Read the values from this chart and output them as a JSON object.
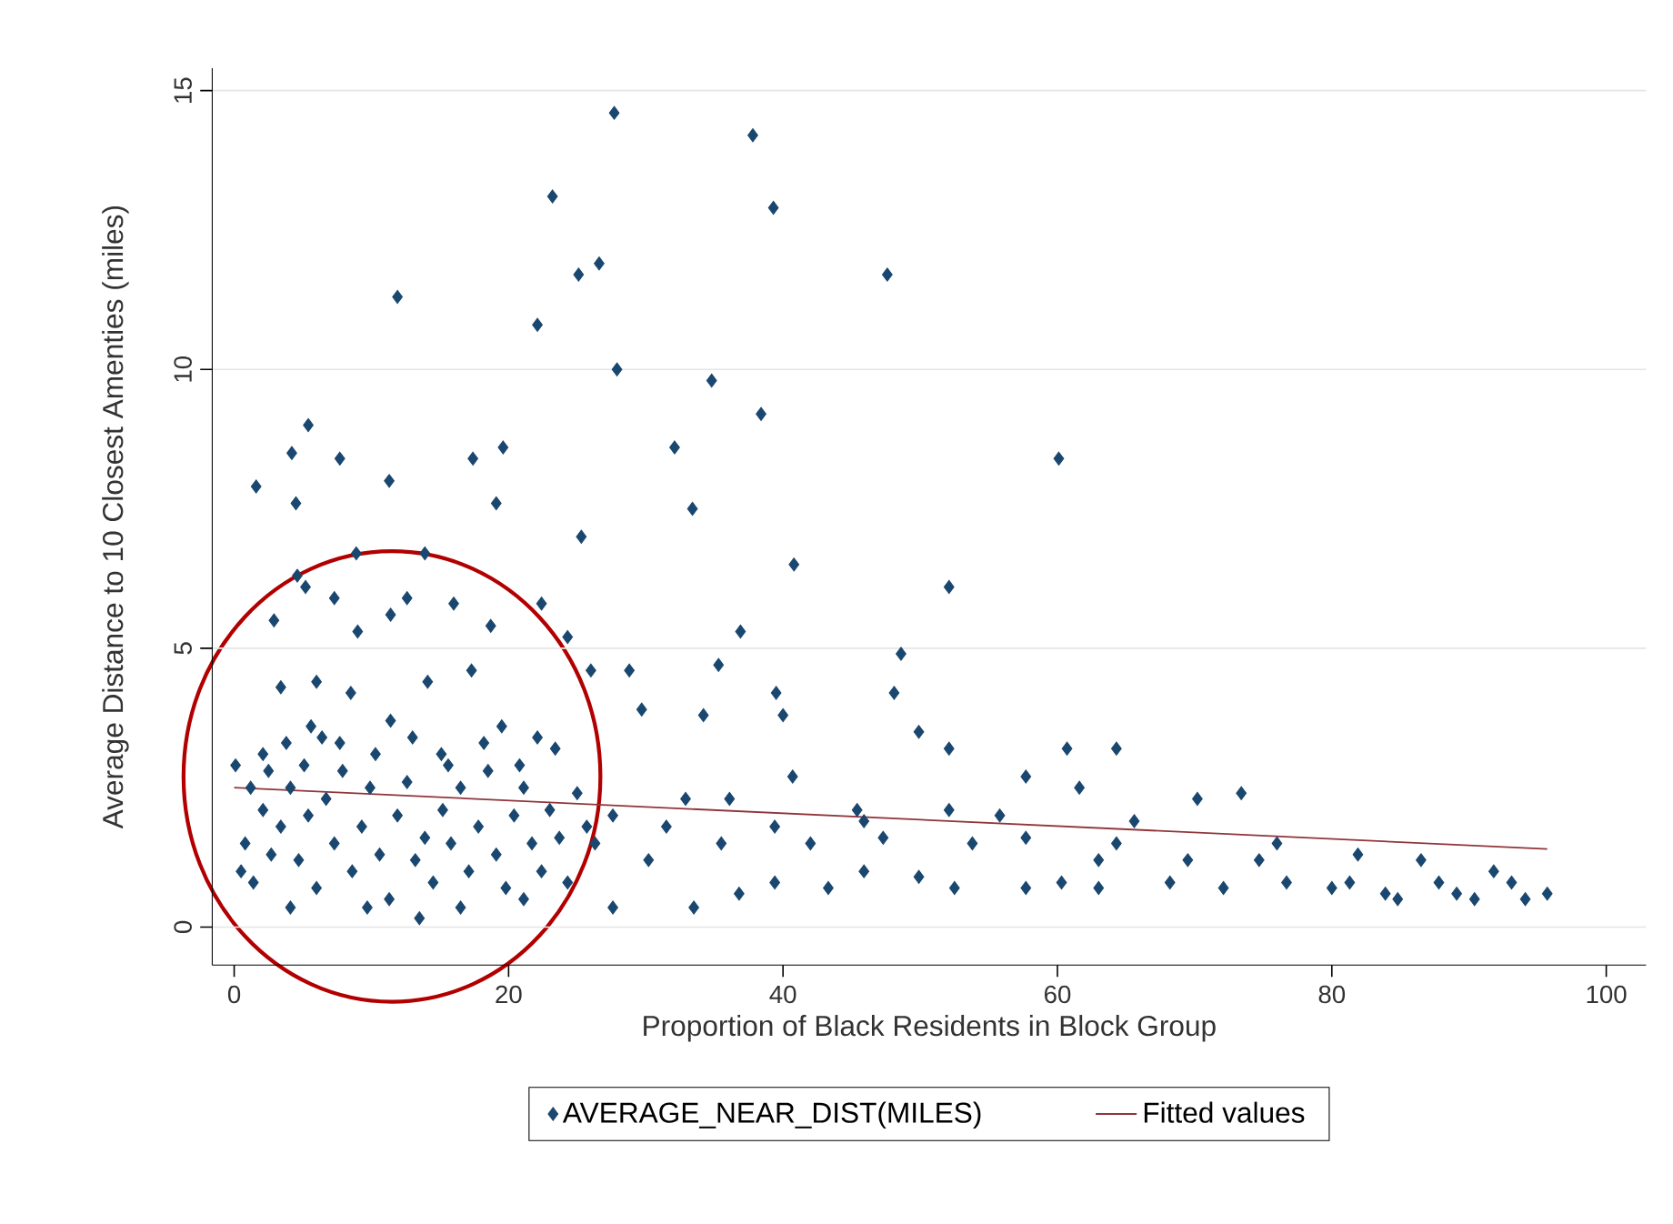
{
  "chart_data": {
    "type": "scatter",
    "xlabel": "Proportion of Black Residents in Block Group",
    "ylabel": "Average Distance to 10 Closest Amenties (miles)",
    "xlim": [
      -1.6,
      102.9
    ],
    "ylim": [
      -0.68,
      15.4
    ],
    "xticks": [
      0,
      20,
      40,
      60,
      80,
      100
    ],
    "yticks": [
      0,
      5,
      10,
      15
    ],
    "grid": "y",
    "legend": "bottom",
    "series": [
      {
        "name": "AVERAGE_NEAR_DIST(MILES)",
        "type": "scatter",
        "marker": "diamond",
        "color": "#1a476f",
        "x": [
          27.7,
          37.8,
          23.2,
          39.3,
          26.6,
          25.1,
          47.6,
          11.9,
          22.1,
          27.9,
          34.8,
          38.4,
          5.4,
          4.2,
          19.6,
          7.7,
          17.4,
          60.1,
          32.1,
          1.6,
          11.3,
          4.5,
          19.1,
          33.4,
          25.3,
          13.9,
          8.9,
          40.8,
          52.1,
          4.6,
          5.2,
          7.3,
          12.6,
          16.0,
          22.4,
          18.7,
          36.9,
          2.9,
          9.0,
          11.4,
          24.3,
          48.6,
          26.0,
          35.3,
          28.8,
          17.3,
          48.1,
          39.5,
          14.1,
          6.0,
          3.4,
          8.5,
          34.2,
          49.9,
          40.0,
          19.5,
          11.4,
          5.6,
          29.7,
          52.1,
          60.7,
          64.3,
          23.4,
          2.1,
          7.7,
          15.1,
          0.1,
          40.7,
          57.7,
          61.6,
          73.4,
          70.2,
          45.4,
          52.1,
          36.1,
          32.9,
          55.8,
          65.6,
          76.0,
          81.9,
          86.5,
          91.8,
          95.7,
          94.1,
          83.9,
          80.0,
          89.1,
          84.8,
          72.1,
          68.2,
          63.0,
          60.3,
          57.7,
          52.5,
          49.9,
          45.9,
          43.3,
          39.4,
          36.8,
          33.5,
          27.6,
          13.5,
          4.1,
          30.2,
          35.5,
          42.0,
          47.3,
          53.8,
          64.3,
          69.5,
          74.7,
          76.7,
          81.3,
          87.8,
          90.4,
          93.1,
          63.0,
          57.7,
          45.9,
          39.4,
          31.5,
          26.3,
          25.0,
          27.6,
          0.8,
          1.4,
          2.1,
          2.7,
          3.4,
          4.1,
          4.7,
          5.4,
          6.0,
          6.7,
          7.3,
          7.9,
          8.6,
          9.3,
          9.9,
          10.6,
          11.3,
          11.9,
          12.6,
          13.2,
          13.9,
          14.5,
          15.2,
          15.8,
          16.5,
          17.1,
          17.8,
          18.5,
          19.1,
          19.8,
          20.4,
          21.1,
          21.7,
          22.4,
          23.0,
          23.7,
          24.3,
          25.7,
          1.2,
          2.5,
          3.8,
          5.1,
          6.4,
          10.3,
          13.0,
          15.6,
          18.2,
          20.8,
          22.1,
          0.5,
          9.7,
          16.5,
          21.1
        ],
        "values": [
          14.6,
          14.2,
          13.1,
          12.9,
          11.9,
          11.7,
          11.7,
          11.3,
          10.8,
          10.0,
          9.8,
          9.2,
          9.0,
          8.5,
          8.6,
          8.4,
          8.4,
          8.4,
          8.6,
          7.9,
          8.0,
          7.6,
          7.6,
          7.5,
          7.0,
          6.7,
          6.7,
          6.5,
          6.1,
          6.3,
          6.1,
          5.9,
          5.9,
          5.8,
          5.8,
          5.4,
          5.3,
          5.5,
          5.3,
          5.6,
          5.2,
          4.9,
          4.6,
          4.7,
          4.6,
          4.6,
          4.2,
          4.2,
          4.4,
          4.4,
          4.3,
          4.2,
          3.8,
          3.5,
          3.8,
          3.6,
          3.7,
          3.6,
          3.9,
          3.2,
          3.2,
          3.2,
          3.2,
          3.1,
          3.3,
          3.1,
          2.9,
          2.7,
          2.7,
          2.5,
          2.4,
          2.3,
          2.1,
          2.1,
          2.3,
          2.3,
          2.0,
          1.9,
          1.5,
          1.3,
          1.2,
          1.0,
          0.6,
          0.5,
          0.6,
          0.7,
          0.6,
          0.5,
          0.7,
          0.8,
          0.7,
          0.8,
          0.7,
          0.7,
          0.9,
          1.0,
          0.7,
          0.8,
          0.6,
          0.35,
          0.35,
          0.16,
          0.35,
          1.2,
          1.5,
          1.5,
          1.6,
          1.5,
          1.5,
          1.2,
          1.2,
          0.8,
          0.8,
          0.8,
          0.5,
          0.8,
          1.2,
          1.6,
          1.9,
          1.8,
          1.8,
          1.5,
          2.4,
          2.0,
          1.5,
          0.8,
          2.1,
          1.3,
          1.8,
          2.5,
          1.2,
          2.0,
          0.7,
          2.3,
          1.5,
          2.8,
          1.0,
          1.8,
          2.5,
          1.3,
          0.5,
          2.0,
          2.6,
          1.2,
          1.6,
          0.8,
          2.1,
          1.5,
          2.5,
          1.0,
          1.8,
          2.8,
          1.3,
          0.7,
          2.0,
          2.5,
          1.5,
          1.0,
          2.1,
          1.6,
          0.8,
          1.8,
          2.5,
          2.8,
          3.3,
          2.9,
          3.4,
          3.1,
          3.4,
          2.9,
          3.3,
          2.9,
          3.4,
          1.0,
          0.35,
          0.35,
          0.5
        ]
      },
      {
        "name": "Fitted values",
        "type": "line",
        "color": "#90353b",
        "x": [
          0,
          95.7
        ],
        "values": [
          2.5,
          1.4
        ]
      }
    ]
  }
}
